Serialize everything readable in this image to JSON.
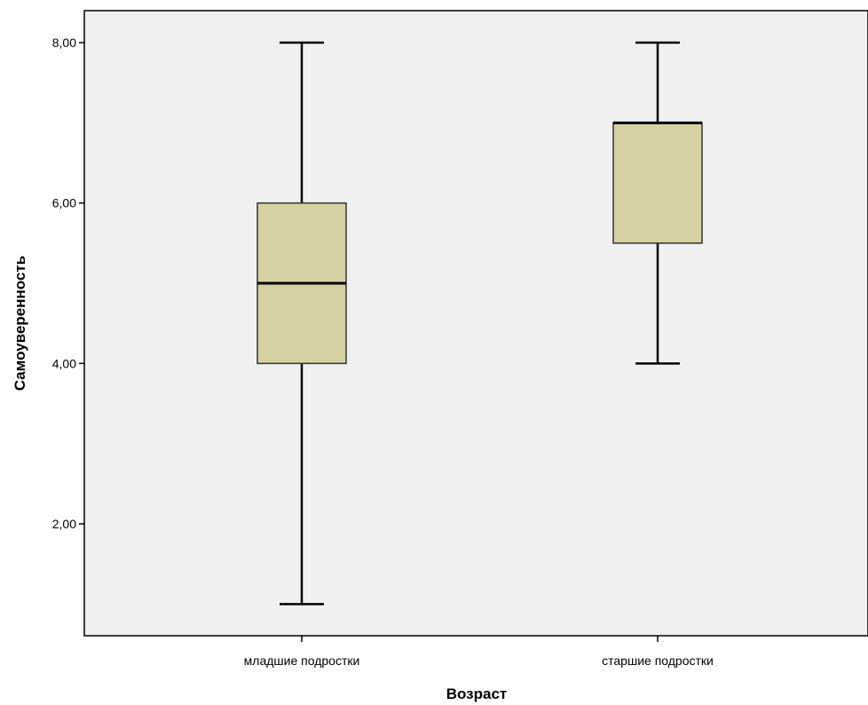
{
  "chart_data": {
    "type": "boxplot",
    "xlabel": "Возраст",
    "ylabel": "Самоуверенность",
    "categories": [
      "младшие подростки",
      "старшие подростки"
    ],
    "boxes": [
      {
        "category": "младшие подростки",
        "min": 1,
        "q1": 4,
        "median": 5,
        "q3": 6,
        "max": 8
      },
      {
        "category": "старшие подростки",
        "min": 4,
        "q1": 5.5,
        "median": 7,
        "q3": 7,
        "max": 8
      }
    ],
    "yticks": [
      2,
      4,
      6,
      8
    ],
    "ytick_labels": [
      "2,00",
      "4,00",
      "6,00",
      "8,00"
    ],
    "ylim": [
      0.7,
      8.4
    ],
    "grid": false,
    "box_color": "#d5d1a2",
    "plot_background": "#f0f0f0",
    "line_color": "#000000"
  }
}
